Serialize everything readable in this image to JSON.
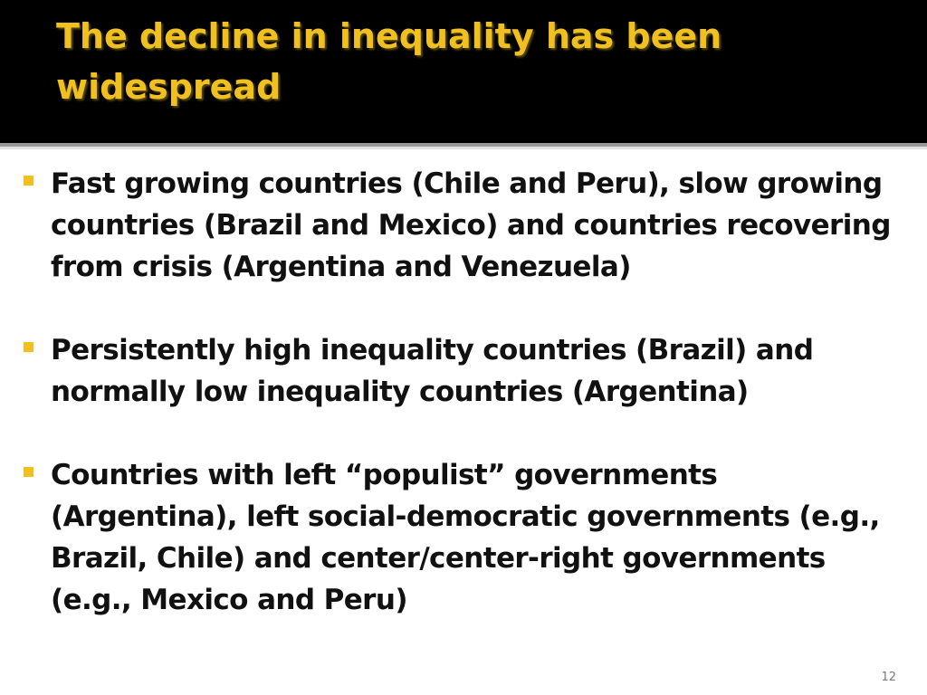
{
  "slide": {
    "title": "The decline in inequality has been widespread",
    "bullets": [
      {
        "text": "Fast growing countries (Chile and Peru), slow growing countries (Brazil and Mexico) and countries recovering from crisis (Argentina and Venezuela)"
      },
      {
        "text": "Persistently high inequality countries (Brazil) and normally low inequality countries (Argentina)"
      },
      {
        "text": "Countries with left “populist” governments (Argentina), left social-democratic governments (e.g., Brazil, Chile) and center/center-right governments (e.g., Mexico and Peru)"
      }
    ],
    "page_number": "12"
  },
  "colors": {
    "title_background": "#000000",
    "title_text": "#f0c020",
    "bullet_marker": "#f0c020",
    "body_text": "#111111"
  }
}
